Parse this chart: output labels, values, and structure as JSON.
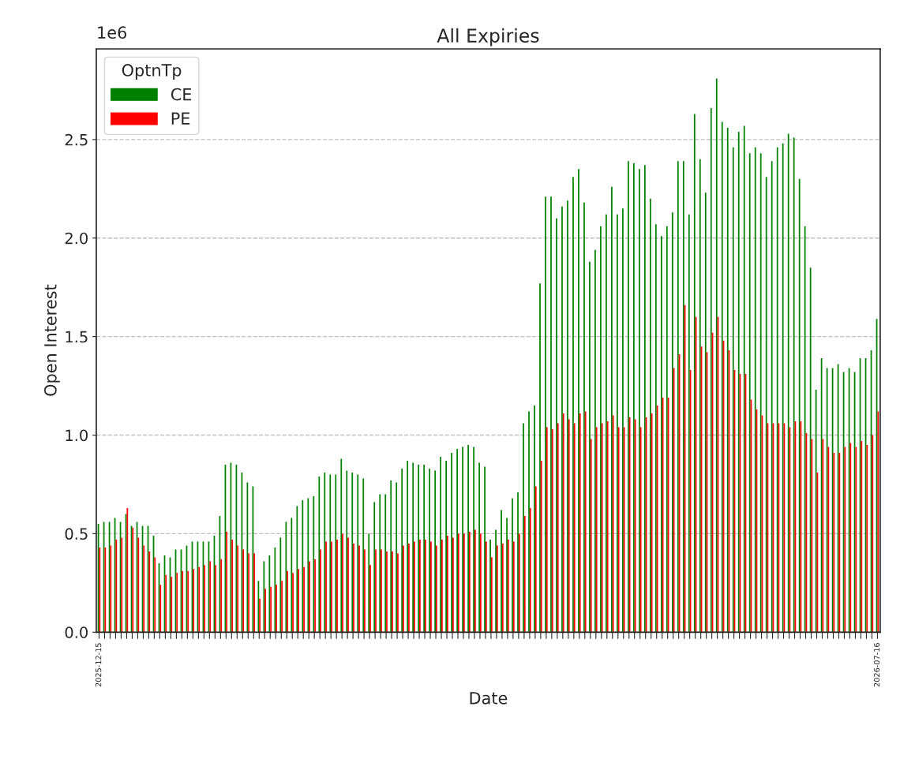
{
  "chart_data": {
    "type": "bar",
    "title": "All Expiries",
    "xlabel": "Date",
    "ylabel": "Open Interest",
    "legend_title": "OptnTp",
    "legend": "top left",
    "grid": "y",
    "annotations": [
      "1e6"
    ],
    "categories": [
      "2025-12-15",
      null,
      null,
      null,
      null,
      null,
      null,
      null,
      null,
      null,
      null,
      null,
      null,
      null,
      null,
      null,
      null,
      null,
      null,
      null,
      null,
      null,
      null,
      null,
      null,
      null,
      null,
      null,
      null,
      null,
      null,
      null,
      null,
      null,
      null,
      null,
      null,
      null,
      null,
      null,
      null,
      null,
      null,
      null,
      null,
      null,
      null,
      null,
      null,
      null,
      null,
      null,
      null,
      null,
      null,
      null,
      null,
      null,
      null,
      null,
      null,
      null,
      null,
      null,
      null,
      null,
      null,
      null,
      null,
      null,
      null,
      null,
      null,
      null,
      null,
      null,
      null,
      null,
      null,
      null,
      null,
      null,
      null,
      null,
      null,
      null,
      null,
      null,
      null,
      null,
      null,
      null,
      null,
      null,
      null,
      null,
      null,
      null,
      null,
      null,
      null,
      null,
      null,
      null,
      null,
      null,
      null,
      null,
      null,
      null,
      null,
      null,
      null,
      null,
      null,
      null,
      null,
      null,
      null,
      null,
      null,
      null,
      null,
      null,
      null,
      null,
      null,
      null,
      null,
      null,
      null,
      null,
      null,
      null,
      null,
      null,
      null,
      null,
      null,
      null,
      null,
      "2026-07-16"
    ],
    "ylim": [
      0.0,
      2.96
    ],
    "yticks": [
      {
        "value": 0,
        "label": "0.0"
      },
      0.5,
      {
        "value": 1,
        "label": "1.0"
      },
      1.5,
      {
        "value": 2,
        "label": "2.0"
      },
      2.5
    ],
    "series": [
      {
        "name": "CE",
        "color": "#008000",
        "values": [
          0.55,
          0.56,
          0.56,
          0.58,
          0.56,
          0.6,
          0.54,
          0.56,
          0.54,
          0.54,
          0.49,
          0.35,
          0.39,
          0.38,
          0.42,
          0.42,
          0.44,
          0.46,
          0.46,
          0.46,
          0.46,
          0.49,
          0.59,
          0.85,
          0.86,
          0.85,
          0.81,
          0.76,
          0.74,
          0.26,
          0.36,
          0.39,
          0.43,
          0.48,
          0.56,
          0.58,
          0.64,
          0.67,
          0.68,
          0.69,
          0.79,
          0.81,
          0.8,
          0.8,
          0.88,
          0.82,
          0.81,
          0.8,
          0.78,
          0.5,
          0.66,
          0.7,
          0.7,
          0.77,
          0.76,
          0.83,
          0.87,
          0.86,
          0.85,
          0.85,
          0.83,
          0.82,
          0.89,
          0.87,
          0.91,
          0.93,
          0.94,
          0.95,
          0.94,
          0.86,
          0.84,
          0.47,
          0.52,
          0.62,
          0.58,
          0.68,
          0.71,
          1.06,
          1.12,
          1.15,
          1.77,
          2.21,
          2.21,
          2.1,
          2.16,
          2.19,
          2.31,
          2.35,
          2.18,
          1.88,
          1.94,
          2.06,
          2.12,
          2.26,
          2.12,
          2.15,
          2.39,
          2.38,
          2.35,
          2.37,
          2.2,
          2.07,
          2.01,
          2.06,
          2.13,
          2.39,
          2.39,
          2.12,
          2.63,
          2.4,
          2.23,
          2.66,
          2.81,
          2.59,
          2.56,
          2.46,
          2.54,
          2.57,
          2.43,
          2.46,
          2.43,
          2.31,
          2.39,
          2.46,
          2.48,
          2.53,
          2.51,
          2.3,
          2.06,
          1.85,
          1.23,
          1.39,
          1.34,
          1.34,
          1.36,
          1.32,
          1.34,
          1.32,
          1.39,
          1.39,
          1.43,
          1.59
        ]
      },
      {
        "name": "PE",
        "color": "#ff0000",
        "values": [
          0.43,
          0.43,
          0.44,
          0.47,
          0.48,
          0.63,
          0.53,
          0.48,
          0.44,
          0.41,
          0.38,
          0.24,
          0.29,
          0.28,
          0.3,
          0.31,
          0.31,
          0.32,
          0.33,
          0.34,
          0.36,
          0.34,
          0.37,
          0.51,
          0.47,
          0.44,
          0.42,
          0.4,
          0.4,
          0.17,
          0.22,
          0.23,
          0.24,
          0.26,
          0.31,
          0.3,
          0.32,
          0.33,
          0.36,
          0.37,
          0.42,
          0.46,
          0.46,
          0.47,
          0.5,
          0.48,
          0.45,
          0.44,
          0.42,
          0.34,
          0.42,
          0.42,
          0.41,
          0.41,
          0.4,
          0.44,
          0.45,
          0.46,
          0.47,
          0.47,
          0.46,
          0.44,
          0.47,
          0.49,
          0.48,
          0.5,
          0.5,
          0.51,
          0.52,
          0.5,
          0.46,
          0.38,
          0.44,
          0.45,
          0.47,
          0.46,
          0.5,
          0.59,
          0.63,
          0.74,
          0.87,
          1.04,
          1.03,
          1.06,
          1.11,
          1.08,
          1.06,
          1.11,
          1.12,
          0.98,
          1.04,
          1.06,
          1.07,
          1.1,
          1.04,
          1.04,
          1.09,
          1.08,
          1.04,
          1.09,
          1.11,
          1.15,
          1.19,
          1.19,
          1.34,
          1.41,
          1.66,
          1.33,
          1.6,
          1.45,
          1.42,
          1.52,
          1.6,
          1.48,
          1.43,
          1.33,
          1.31,
          1.31,
          1.18,
          1.13,
          1.1,
          1.06,
          1.06,
          1.06,
          1.06,
          1.04,
          1.07,
          1.07,
          1.01,
          0.98,
          0.81,
          0.98,
          0.94,
          0.91,
          0.91,
          0.94,
          0.96,
          0.94,
          0.97,
          0.95,
          1.0,
          1.12
        ]
      }
    ]
  }
}
